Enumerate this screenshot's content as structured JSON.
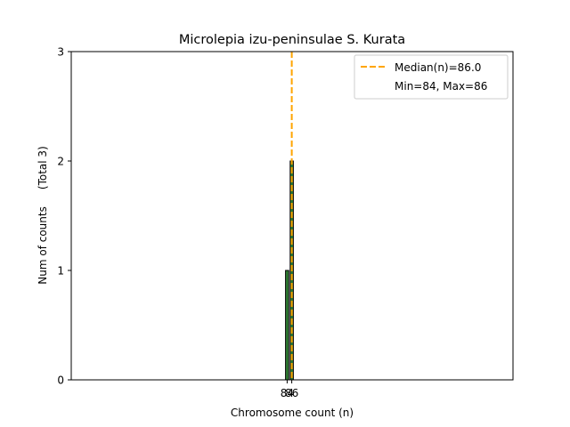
{
  "chart_data": {
    "type": "bar",
    "title": "Microlepia izu-peninsulae S. Kurata",
    "xlabel": "Chromosome count (n)",
    "ylabel": "Num of counts     (Total 3)",
    "ylim": [
      0,
      3
    ],
    "yticks": [
      0,
      1,
      2,
      3
    ],
    "xticks": [
      84,
      86
    ],
    "bars": [
      {
        "x": 84,
        "value": 1
      },
      {
        "x": 86,
        "value": 2
      }
    ],
    "median": 86.0,
    "legend": {
      "position": "top-right",
      "entries": [
        "Median(n)=86.0",
        "Min=84, Max=86"
      ]
    },
    "colors": {
      "bar_fill": "#2e7d32",
      "bar_edge": "#000000",
      "median_line": "#ffa500"
    }
  }
}
